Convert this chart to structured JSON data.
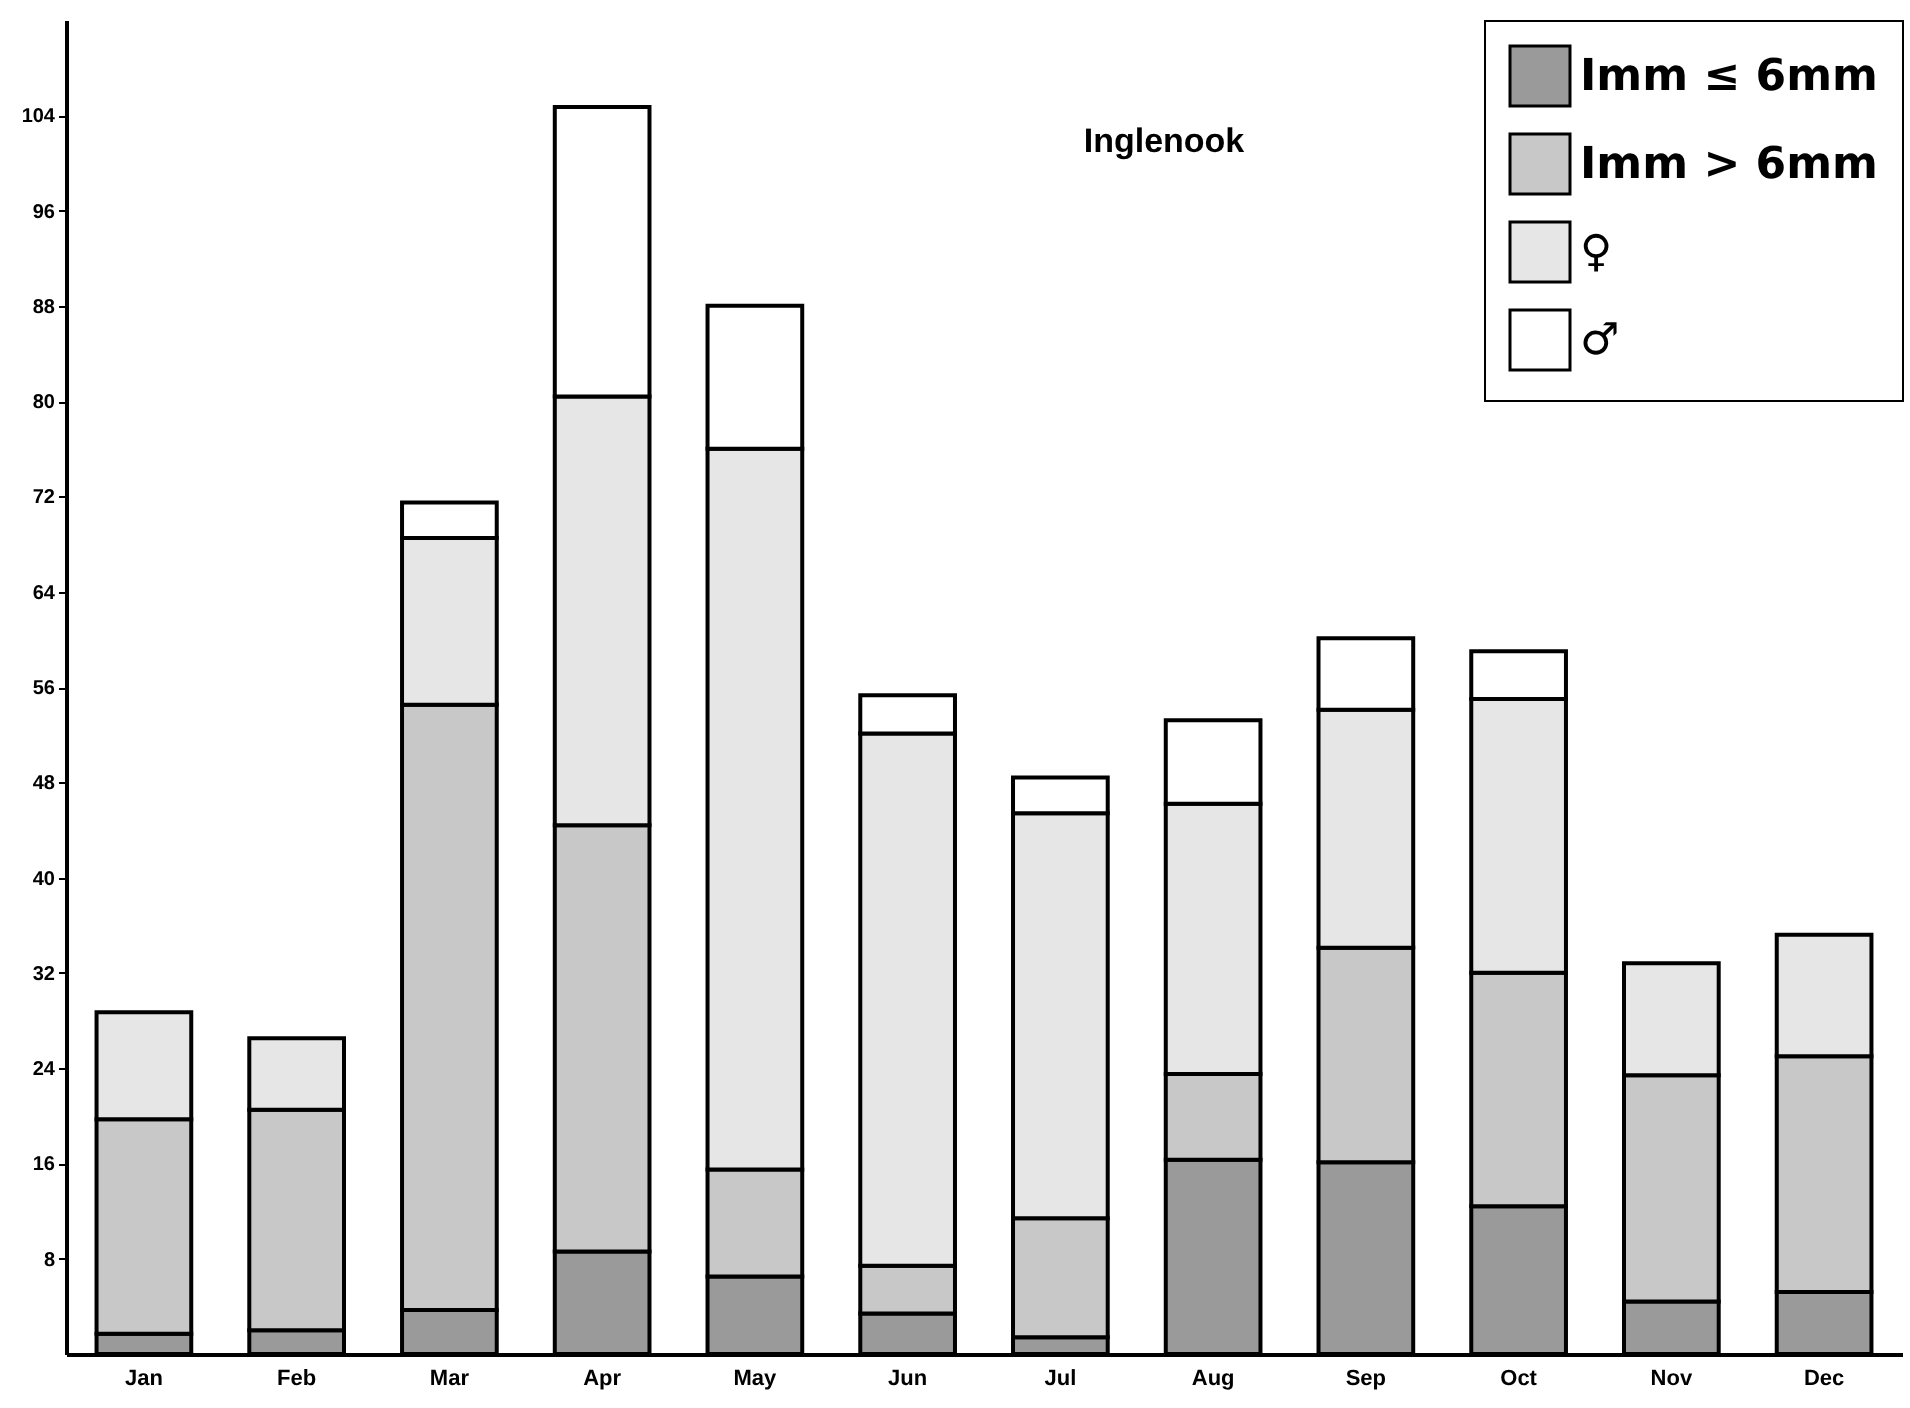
{
  "chart_data": {
    "type": "bar",
    "title": "Inglenook",
    "stacked": true,
    "legend": "top right",
    "grid": false,
    "categories": [
      "Jan",
      "Feb",
      "Mar",
      "Apr",
      "May",
      "Jun",
      "Jul",
      "Aug",
      "Sep",
      "Oct",
      "Nov",
      "Dec"
    ],
    "ylim": [
      0,
      112
    ],
    "yticks": [
      8,
      16,
      24,
      32,
      40,
      48,
      56,
      64,
      72,
      80,
      88,
      96,
      104
    ],
    "series": [
      {
        "name": "Imm ≤ 6mm",
        "color": "#9a9a9a",
        "values": [
          1.7,
          2,
          3.7,
          8.6,
          6.5,
          3.4,
          1.4,
          16.3,
          16.1,
          12.4,
          4.4,
          5.2
        ]
      },
      {
        "name": "Imm > 6mm",
        "color": "#c8c8c8",
        "values": [
          18,
          18.5,
          50.8,
          35.8,
          9,
          4,
          10,
          7.2,
          18,
          19.6,
          19,
          19.8
        ]
      },
      {
        "name": "♀",
        "color": "#e6e6e6",
        "values": [
          9,
          6,
          14,
          36,
          60.5,
          44.7,
          34,
          22.7,
          20,
          23,
          9.4,
          10.2
        ]
      },
      {
        "name": "♂",
        "color": "#ffffff",
        "values": [
          null,
          null,
          3,
          24.3,
          12,
          3.2,
          3,
          7,
          6,
          4,
          null,
          null
        ]
      }
    ]
  }
}
